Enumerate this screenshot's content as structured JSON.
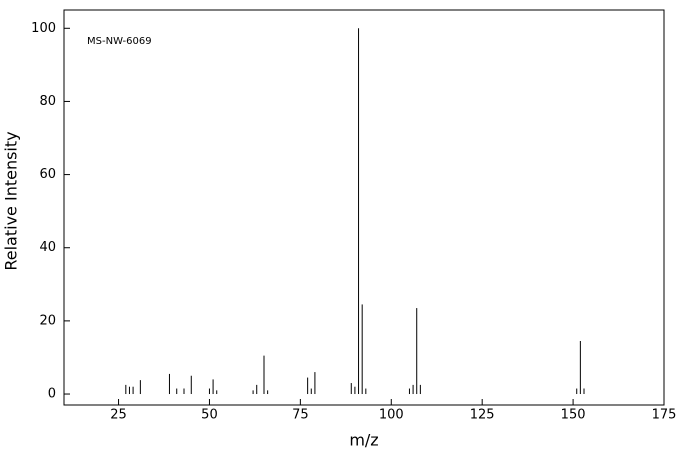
{
  "chart_data": {
    "type": "stem",
    "annotation": "MS-NW-6069",
    "xlabel": "m/z",
    "ylabel": "Relative Intensity",
    "x": [
      27,
      28,
      29,
      31,
      39,
      41,
      43,
      45,
      50,
      51,
      52,
      62,
      63,
      65,
      66,
      77,
      78,
      79,
      89,
      90,
      91,
      92,
      93,
      105,
      106,
      107,
      108,
      151,
      152,
      153
    ],
    "values": [
      2.5,
      2,
      2,
      3.8,
      5.5,
      1.5,
      1.5,
      5,
      1.5,
      4,
      1,
      1,
      2.5,
      10.5,
      1,
      4.5,
      1.5,
      6,
      3,
      2,
      100,
      24.5,
      1.5,
      1.5,
      2.5,
      23.5,
      2.5,
      1.5,
      14.5,
      1.5
    ],
    "color": "#000000",
    "xlim": [
      10,
      175
    ],
    "ylim": [
      -3,
      105
    ],
    "xticks": [
      25,
      50,
      75,
      100,
      125,
      150,
      175
    ],
    "yticks": [
      0,
      20,
      40,
      60,
      80,
      100
    ]
  }
}
